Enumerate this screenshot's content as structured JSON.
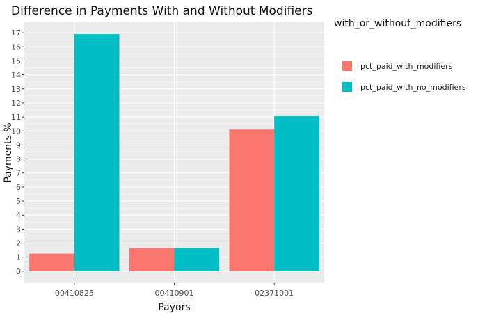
{
  "chart_data": {
    "type": "bar",
    "title": "Difference in Payments With and Without Modifiers",
    "xlabel": "Payors",
    "ylabel": "Payments %",
    "categories": [
      "00410825",
      "00410901",
      "02371001"
    ],
    "series": [
      {
        "name": "pct_paid_with_modifiers",
        "color": "#F8766D",
        "values": [
          1.25,
          1.65,
          10.1
        ]
      },
      {
        "name": "pct_paid_with_no_modifiers",
        "color": "#00BFC4",
        "values": [
          16.9,
          1.65,
          11.05
        ]
      }
    ],
    "ylim": [
      -0.85,
      17.75
    ],
    "yticks": [
      "0",
      "1",
      "2",
      "3",
      "4",
      "5",
      "6",
      "7",
      "8",
      "9",
      "10",
      "11",
      "12",
      "13",
      "14",
      "15",
      "16",
      "17"
    ],
    "legend_title": "with_or_without_modifiers",
    "legend_position": "right",
    "grid": true,
    "panel_color": "#EBEBEB"
  }
}
